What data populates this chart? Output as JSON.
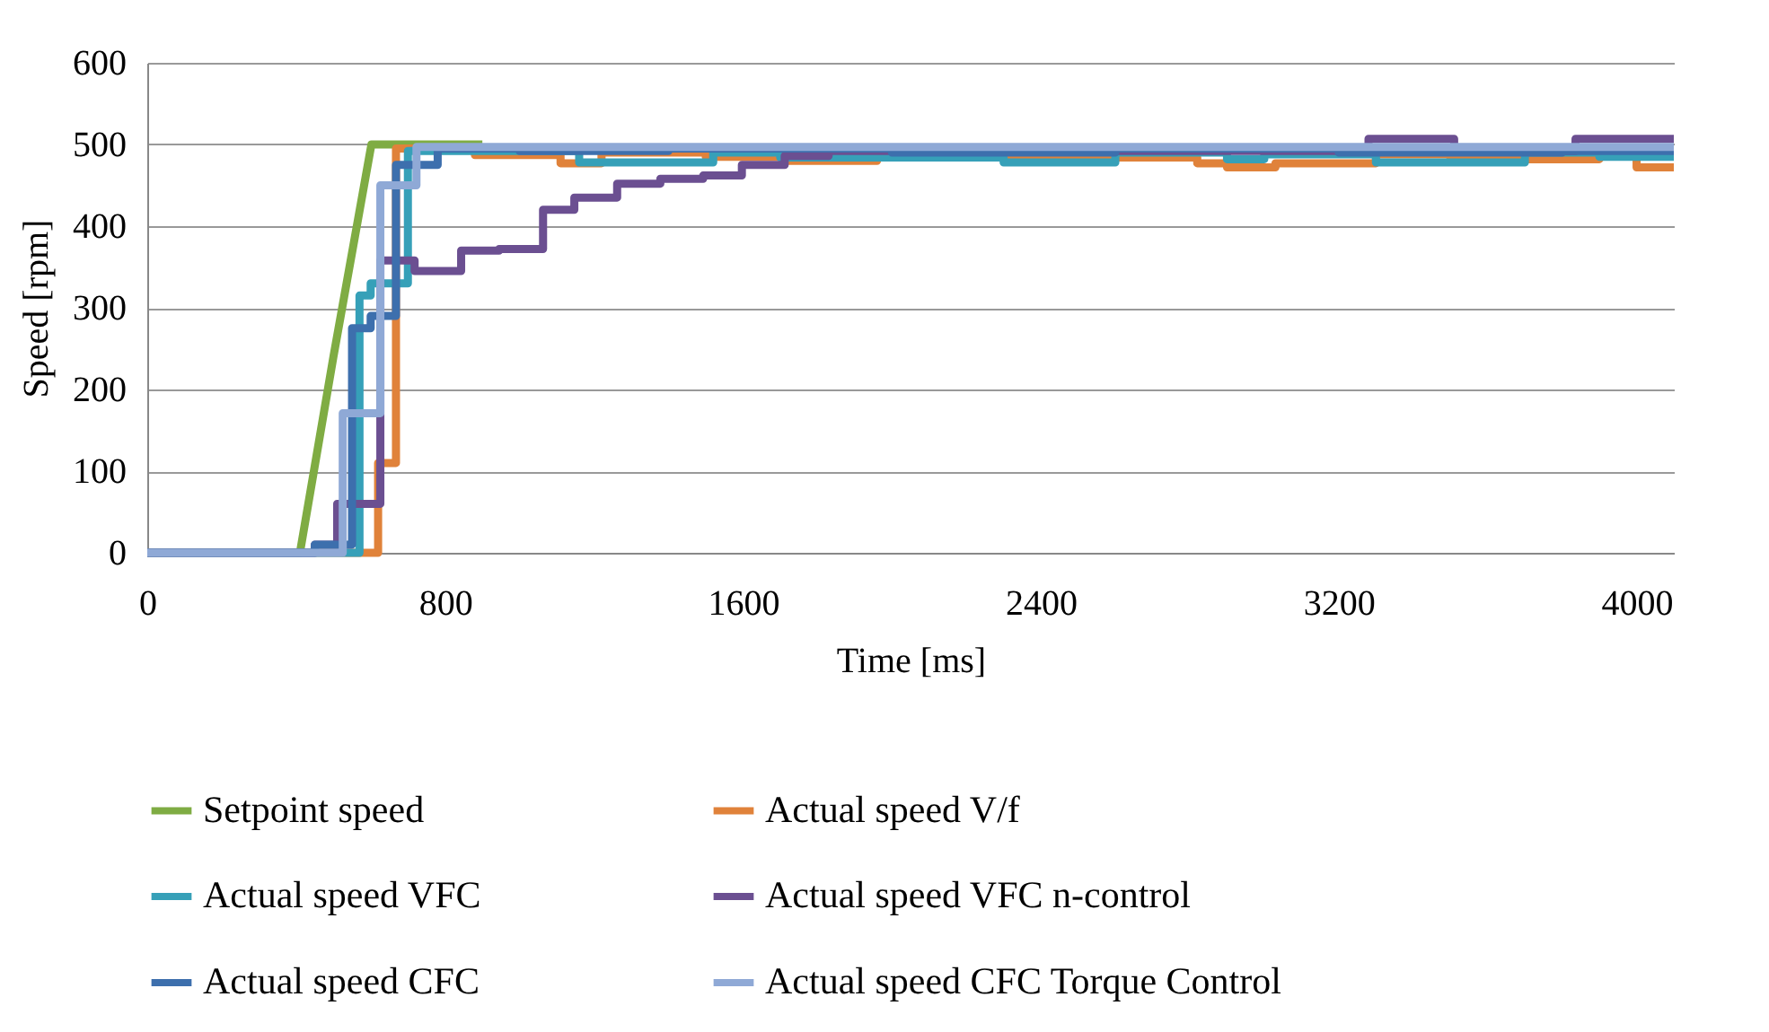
{
  "chart_data": {
    "type": "step",
    "xlabel": "Time [ms]",
    "ylabel": "Speed [rpm]",
    "xlim": [
      0,
      4100
    ],
    "xticks": [
      0,
      800,
      1600,
      2400,
      3200,
      4000
    ],
    "ylim": [
      0,
      600
    ],
    "yticks": [
      0,
      100,
      200,
      300,
      400,
      500,
      600
    ],
    "grid": "y",
    "legend": "bottom",
    "marker": "none",
    "line_style": "solid",
    "series": [
      {
        "name": "Setpoint speed",
        "color": "#7fac43",
        "type": "line",
        "x": [
          0,
          410,
          500,
          602,
          900
        ],
        "values": [
          0,
          0,
          240,
          500,
          500
        ]
      },
      {
        "name": "Actual speed V/f",
        "color": "#e0823a",
        "x": [
          0,
          620,
          668,
          880,
          1110,
          1220,
          1500,
          1716,
          1960,
          2200,
          2820,
          2900,
          3030,
          3300,
          3500,
          3900,
          4000,
          4100
        ],
        "values": [
          0,
          110,
          495,
          487,
          477,
          490,
          485,
          480,
          485,
          484,
          477,
          472,
          477,
          488,
          482,
          488,
          472,
          472
        ]
      },
      {
        "name": "Actual speed VFC",
        "color": "#36a0b8",
        "x": [
          0,
          570,
          600,
          700,
          1160,
          1520,
          1700,
          2300,
          2600,
          2900,
          3000,
          3300,
          3700,
          3900,
          4100
        ],
        "values": [
          0,
          315,
          330,
          492,
          478,
          490,
          484,
          478,
          490,
          482,
          488,
          478,
          490,
          485,
          485
        ]
      },
      {
        "name": "Actual speed VFC n-control",
        "color": "#6b4f91",
        "x": [
          0,
          450,
          510,
          626,
          718,
          843,
          945,
          1063,
          1147,
          1262,
          1378,
          1493,
          1597,
          1712,
          1830,
          3280,
          3510,
          3836,
          4100
        ],
        "values": [
          0,
          10,
          60,
          358,
          345,
          370,
          372,
          420,
          435,
          452,
          458,
          462,
          475,
          486,
          492,
          507,
          492,
          507,
          507
        ]
      },
      {
        "name": "Actual speed CFC",
        "color": "#3d6fad",
        "x": [
          0,
          450,
          550,
          600,
          668,
          780,
          1000,
          1400,
          2000,
          2600,
          3200,
          3800,
          4100
        ],
        "values": [
          0,
          10,
          275,
          290,
          475,
          495,
          492,
          495,
          490,
          495,
          490,
          492,
          492
        ]
      },
      {
        "name": "Actual speed CFC Torque Control",
        "color": "#8fa9d6",
        "x": [
          0,
          525,
          626,
          723,
          4100
        ],
        "values": [
          0,
          171,
          450,
          497,
          497
        ]
      }
    ]
  }
}
